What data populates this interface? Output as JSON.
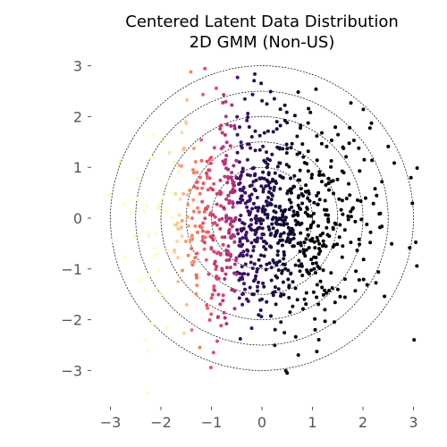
{
  "chart_data": {
    "type": "scatter",
    "title": "Centered Latent Data Distribution",
    "subtitle": "2D GMM (Non-US)",
    "xlabel": "",
    "ylabel": "",
    "xlim": [
      -3.3,
      3.2
    ],
    "ylim": [
      -3.6,
      3.1
    ],
    "xticks": [
      -3,
      -2,
      -1,
      0,
      1,
      2,
      3
    ],
    "yticks": [
      -3,
      -2,
      -1,
      0,
      1,
      2,
      3
    ],
    "xtick_labels": [
      "−3",
      "−2",
      "−1",
      "0",
      "1",
      "2",
      "3"
    ],
    "ytick_labels": [
      "−3",
      "−2",
      "−1",
      "0",
      "1",
      "2",
      "3"
    ],
    "grid": false,
    "colormap": "magma (dark at right/center, light at left)",
    "circle_radii": [
      1.0,
      1.5,
      2.0,
      2.5,
      3.0
    ],
    "point_count": 1000,
    "distribution": "approximately standard 2D Gaussian centered at (0, 0); color varies with x from light peach on the left to near-black in the center/right",
    "colors": {
      "title": "#000000",
      "tick_label": "#555555",
      "circle_stroke": "#000000",
      "background": "#ffffff"
    }
  }
}
